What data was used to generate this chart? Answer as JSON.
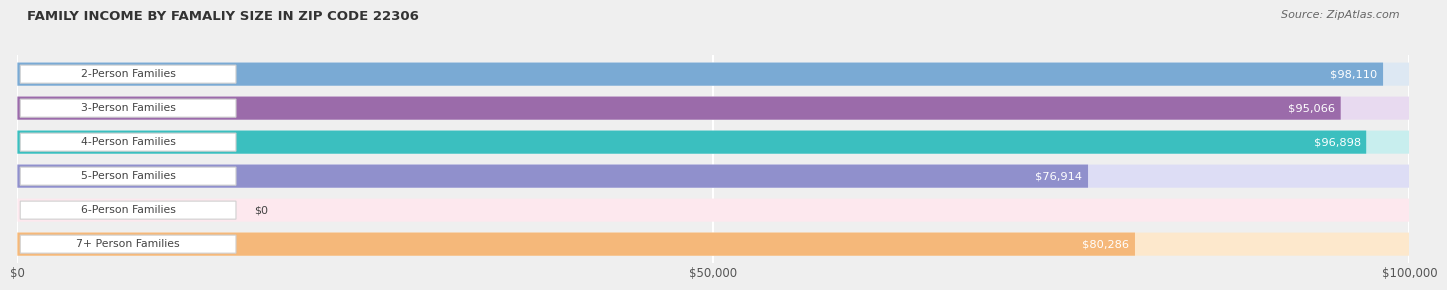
{
  "title": "FAMILY INCOME BY FAMALIY SIZE IN ZIP CODE 22306",
  "source": "Source: ZipAtlas.com",
  "categories": [
    "2-Person Families",
    "3-Person Families",
    "4-Person Families",
    "5-Person Families",
    "6-Person Families",
    "7+ Person Families"
  ],
  "values": [
    98110,
    95066,
    96898,
    76914,
    0,
    80286
  ],
  "bar_colors": [
    "#7aaad4",
    "#9b6baa",
    "#3bbfbf",
    "#9090cc",
    "#f4a0b0",
    "#f5b87a"
  ],
  "bg_colors": [
    "#dde8f3",
    "#e8daf0",
    "#c8eeee",
    "#ddddf5",
    "#fde8ee",
    "#fde8cc"
  ],
  "value_labels": [
    "$98,110",
    "$95,066",
    "$96,898",
    "$76,914",
    "$0",
    "$80,286"
  ],
  "xmax": 100000,
  "xticks": [
    0,
    50000,
    100000
  ],
  "xtick_labels": [
    "$0",
    "$50,000",
    "$100,000"
  ],
  "background_color": "#efefef",
  "bar_bg_full": "#e8e8e8",
  "grid_color": "#ffffff"
}
